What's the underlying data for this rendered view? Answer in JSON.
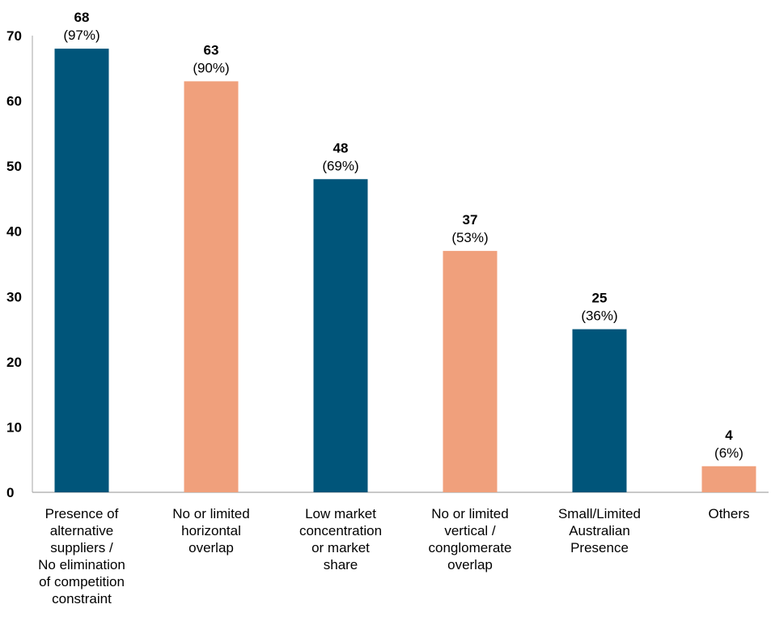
{
  "chart_data": {
    "type": "bar",
    "title": "",
    "xlabel": "",
    "ylabel": "",
    "ylim": [
      0,
      70
    ],
    "y_ticks": [
      "0",
      "10",
      "20",
      "30",
      "40",
      "50",
      "60",
      "70"
    ],
    "grid": false,
    "legend": "none",
    "colors": [
      "#00557a",
      "#f0a07c"
    ],
    "categories": [
      [
        "Presence of",
        "alternative",
        "suppliers /",
        "No elimination",
        "of competition",
        "constraint"
      ],
      [
        "No or limited",
        "horizontal",
        "overlap"
      ],
      [
        "Low market",
        "concentration",
        "or market",
        "share"
      ],
      [
        "No or limited",
        "vertical /",
        "conglomerate",
        "overlap"
      ],
      [
        "Small/Limited",
        "Australian",
        "Presence"
      ],
      [
        "Others"
      ]
    ],
    "values": [
      68,
      63,
      48,
      37,
      25,
      4
    ],
    "value_labels": [
      "68",
      "63",
      "48",
      "37",
      "25",
      "4"
    ],
    "percent_labels": [
      "(97%)",
      "(90%)",
      "(69%)",
      "(53%)",
      "(36%)",
      "(6%)"
    ]
  }
}
